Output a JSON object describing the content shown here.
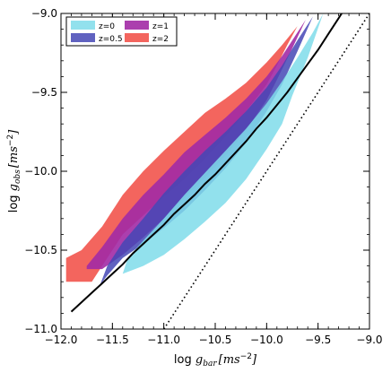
{
  "chart_data": {
    "type": "area",
    "xlabel": {
      "prefix": "log ",
      "var": "g",
      "sub": "bar",
      "units": "[ms",
      "sup": "−2",
      "close": "]"
    },
    "ylabel": {
      "prefix": "log ",
      "var": "g",
      "sub": "obs",
      "units": "[ms",
      "sup": "−2",
      "close": "]"
    },
    "xlim": [
      -12.0,
      -9.0
    ],
    "ylim": [
      -11.0,
      -9.0
    ],
    "xticks": [
      -12.0,
      -11.5,
      -11.0,
      -10.5,
      -10.0,
      -9.5,
      -9.0
    ],
    "yticks": [
      -11.0,
      -10.5,
      -10.0,
      -9.5,
      -9.0
    ],
    "xtick_labels": [
      "−12.0",
      "−11.5",
      "−11.0",
      "−10.5",
      "−10.0",
      "−9.5",
      "−9.0"
    ],
    "ytick_labels": [
      "−11.0",
      "−10.5",
      "−10.0",
      "−9.5",
      "−9.0"
    ],
    "grid": false,
    "legend_position": "top-left",
    "series": [
      {
        "name": "z=2",
        "color": "#f2544c",
        "opacity": 0.9,
        "upper": [
          [
            -11.95,
            -10.55
          ],
          [
            -11.8,
            -10.5
          ],
          [
            -11.6,
            -10.35
          ],
          [
            -11.4,
            -10.15
          ],
          [
            -11.2,
            -10.0
          ],
          [
            -11.0,
            -9.87
          ],
          [
            -10.8,
            -9.75
          ],
          [
            -10.6,
            -9.63
          ],
          [
            -10.4,
            -9.54
          ],
          [
            -10.2,
            -9.44
          ],
          [
            -10.0,
            -9.31
          ],
          [
            -9.85,
            -9.2
          ],
          [
            -9.7,
            -9.08
          ]
        ],
        "lower": [
          [
            -9.7,
            -9.08
          ],
          [
            -9.8,
            -9.2
          ],
          [
            -9.9,
            -9.33
          ],
          [
            -10.0,
            -9.45
          ],
          [
            -10.2,
            -9.62
          ],
          [
            -10.4,
            -9.78
          ],
          [
            -10.6,
            -9.92
          ],
          [
            -10.8,
            -10.05
          ],
          [
            -11.0,
            -10.16
          ],
          [
            -11.2,
            -10.28
          ],
          [
            -11.4,
            -10.4
          ],
          [
            -11.55,
            -10.55
          ],
          [
            -11.7,
            -10.7
          ],
          [
            -11.95,
            -10.7
          ]
        ]
      },
      {
        "name": "z=1",
        "color": "#a22aa5",
        "opacity": 0.9,
        "upper": [
          [
            -11.75,
            -10.6
          ],
          [
            -11.6,
            -10.48
          ],
          [
            -11.4,
            -10.3
          ],
          [
            -11.2,
            -10.15
          ],
          [
            -11.0,
            -10.02
          ],
          [
            -10.8,
            -9.88
          ],
          [
            -10.6,
            -9.77
          ],
          [
            -10.4,
            -9.66
          ],
          [
            -10.2,
            -9.54
          ],
          [
            -10.0,
            -9.4
          ],
          [
            -9.85,
            -9.27
          ],
          [
            -9.7,
            -9.12
          ],
          [
            -9.62,
            -9.04
          ]
        ],
        "lower": [
          [
            -9.62,
            -9.04
          ],
          [
            -9.75,
            -9.22
          ],
          [
            -9.9,
            -9.42
          ],
          [
            -10.0,
            -9.55
          ],
          [
            -10.2,
            -9.74
          ],
          [
            -10.4,
            -9.9
          ],
          [
            -10.6,
            -10.04
          ],
          [
            -10.8,
            -10.17
          ],
          [
            -11.0,
            -10.3
          ],
          [
            -11.2,
            -10.42
          ],
          [
            -11.4,
            -10.53
          ],
          [
            -11.6,
            -10.62
          ],
          [
            -11.75,
            -10.62
          ]
        ]
      },
      {
        "name": "z=0.5",
        "color": "#4446b5",
        "opacity": 0.85,
        "upper": [
          [
            -11.62,
            -10.72
          ],
          [
            -11.55,
            -10.6
          ],
          [
            -11.4,
            -10.45
          ],
          [
            -11.2,
            -10.3
          ],
          [
            -11.0,
            -10.14
          ],
          [
            -10.8,
            -10.0
          ],
          [
            -10.6,
            -9.87
          ],
          [
            -10.4,
            -9.75
          ],
          [
            -10.2,
            -9.62
          ],
          [
            -10.0,
            -9.47
          ],
          [
            -9.85,
            -9.33
          ],
          [
            -9.7,
            -9.17
          ],
          [
            -9.55,
            -9.02
          ]
        ],
        "lower": [
          [
            -9.55,
            -9.02
          ],
          [
            -9.7,
            -9.24
          ],
          [
            -9.85,
            -9.45
          ],
          [
            -10.0,
            -9.62
          ],
          [
            -10.2,
            -9.82
          ],
          [
            -10.4,
            -9.98
          ],
          [
            -10.6,
            -10.12
          ],
          [
            -10.8,
            -10.25
          ],
          [
            -11.0,
            -10.36
          ],
          [
            -11.2,
            -10.46
          ],
          [
            -11.4,
            -10.55
          ],
          [
            -11.55,
            -10.66
          ],
          [
            -11.62,
            -10.72
          ]
        ]
      },
      {
        "name": "z=0",
        "color": "#7fdcea",
        "opacity": 0.85,
        "upper": [
          [
            -11.4,
            -10.65
          ],
          [
            -11.35,
            -10.55
          ],
          [
            -11.2,
            -10.44
          ],
          [
            -11.0,
            -10.3
          ],
          [
            -10.8,
            -10.15
          ],
          [
            -10.6,
            -10.01
          ],
          [
            -10.4,
            -9.87
          ],
          [
            -10.2,
            -9.73
          ],
          [
            -10.0,
            -9.57
          ],
          [
            -9.85,
            -9.43
          ],
          [
            -9.7,
            -9.28
          ],
          [
            -9.55,
            -9.12
          ],
          [
            -9.45,
            -9.0
          ]
        ],
        "lower": [
          [
            -9.45,
            -9.0
          ],
          [
            -9.6,
            -9.28
          ],
          [
            -9.75,
            -9.52
          ],
          [
            -9.85,
            -9.7
          ],
          [
            -10.0,
            -9.86
          ],
          [
            -10.2,
            -10.05
          ],
          [
            -10.4,
            -10.2
          ],
          [
            -10.6,
            -10.32
          ],
          [
            -10.8,
            -10.43
          ],
          [
            -11.0,
            -10.53
          ],
          [
            -11.2,
            -10.6
          ],
          [
            -11.4,
            -10.65
          ]
        ]
      }
    ],
    "lines": [
      {
        "style": "solid",
        "color": "#000000",
        "points": [
          [
            -11.9,
            -10.89
          ],
          [
            -11.8,
            -10.83
          ],
          [
            -11.7,
            -10.77
          ],
          [
            -11.6,
            -10.71
          ],
          [
            -11.5,
            -10.65
          ],
          [
            -11.4,
            -10.59
          ],
          [
            -11.3,
            -10.52
          ],
          [
            -11.2,
            -10.46
          ],
          [
            -11.1,
            -10.4
          ],
          [
            -11.0,
            -10.34
          ],
          [
            -10.9,
            -10.27
          ],
          [
            -10.8,
            -10.21
          ],
          [
            -10.7,
            -10.15
          ],
          [
            -10.6,
            -10.08
          ],
          [
            -10.5,
            -10.02
          ],
          [
            -10.4,
            -9.95
          ],
          [
            -10.3,
            -9.88
          ],
          [
            -10.2,
            -9.81
          ],
          [
            -10.1,
            -9.73
          ],
          [
            -10.0,
            -9.66
          ],
          [
            -9.9,
            -9.58
          ],
          [
            -9.8,
            -9.5
          ],
          [
            -9.7,
            -9.41
          ],
          [
            -9.6,
            -9.32
          ],
          [
            -9.5,
            -9.23
          ],
          [
            -9.4,
            -9.13
          ],
          [
            -9.3,
            -9.03
          ],
          [
            -9.27,
            -9.0
          ]
        ]
      },
      {
        "style": "dotted",
        "color": "#000000",
        "points": [
          [
            -11.0,
            -11.0
          ],
          [
            -9.0,
            -9.0
          ]
        ]
      }
    ]
  }
}
